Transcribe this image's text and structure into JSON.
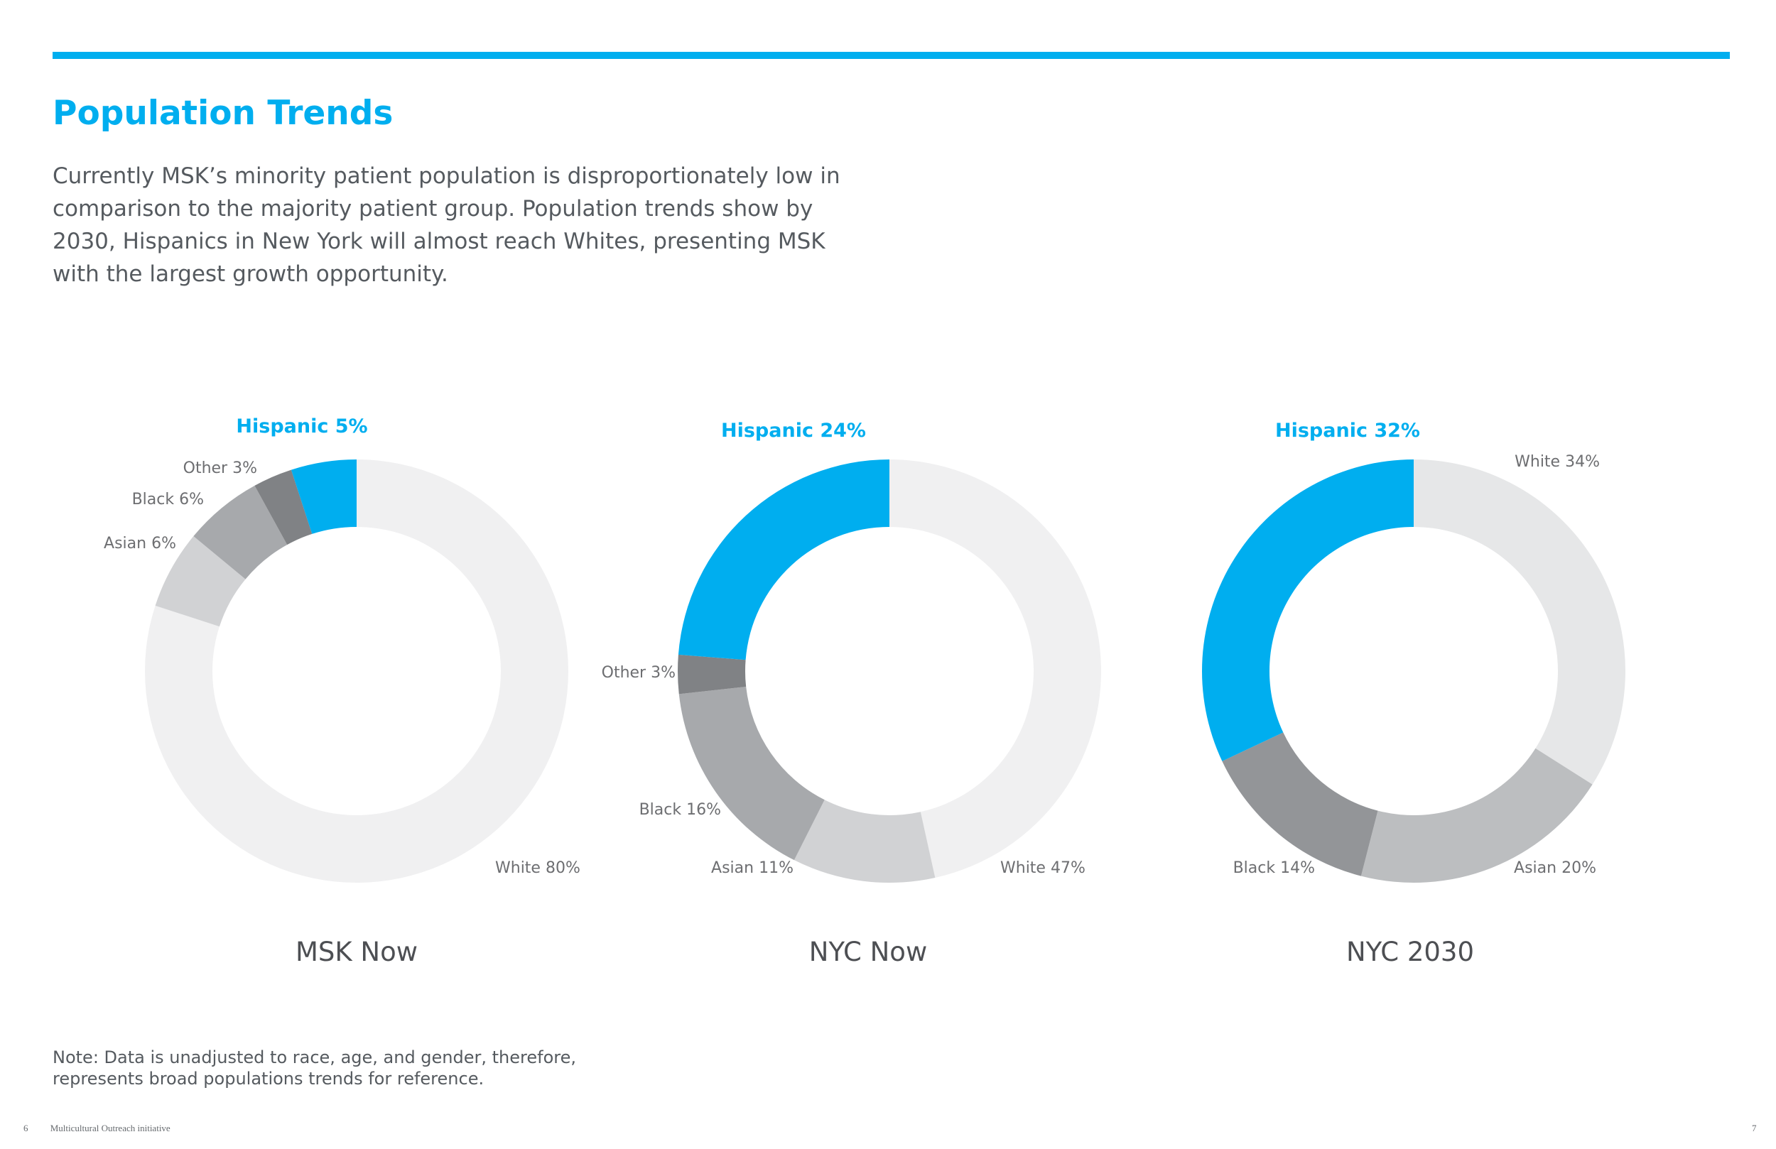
{
  "page": {
    "title": "Population Trends",
    "intro": "Currently MSK’s minority patient population is disproportionately low in comparison to the majority patient group. Population trends show by 2030, Hispanics in New York will almost reach Whites, presenting MSK with the largest growth opportunity.",
    "note": "Note: Data is unadjusted to race, age, and gender, therefore, represents broad populations trends for reference.",
    "footer": {
      "left_page_number": "6",
      "publication": "Multicultural Outreach initiative",
      "right_page_number": "7"
    },
    "accent_color": "#00aeef"
  },
  "chart_data": [
    {
      "type": "donut",
      "title": "MSK Now",
      "slices": [
        {
          "label": "White 80%",
          "category": "White",
          "value": 80,
          "color": "#f0f0f1"
        },
        {
          "label": "Asian 6%",
          "category": "Asian",
          "value": 6,
          "color": "#d1d2d4"
        },
        {
          "label": "Black 6%",
          "category": "Black",
          "value": 6,
          "color": "#a7a9ac"
        },
        {
          "label": "Other 3%",
          "category": "Other",
          "value": 3,
          "color": "#808285"
        },
        {
          "label": "Hispanic 5%",
          "category": "Hispanic",
          "value": 5,
          "color": "#00aeef",
          "highlight": true
        }
      ]
    },
    {
      "type": "donut",
      "title": "NYC Now",
      "slices": [
        {
          "label": "White 47%",
          "category": "White",
          "value": 47,
          "color": "#f0f0f1"
        },
        {
          "label": "Asian 11%",
          "category": "Asian",
          "value": 11,
          "color": "#d1d2d4"
        },
        {
          "label": "Black 16%",
          "category": "Black",
          "value": 16,
          "color": "#a7a9ac"
        },
        {
          "label": "Other 3%",
          "category": "Other",
          "value": 3,
          "color": "#808285"
        },
        {
          "label": "Hispanic 24%",
          "category": "Hispanic",
          "value": 24,
          "color": "#00aeef",
          "highlight": true
        }
      ]
    },
    {
      "type": "donut",
      "title": "NYC 2030",
      "slices": [
        {
          "label": "White 34%",
          "category": "White",
          "value": 34,
          "color": "#e6e7e8"
        },
        {
          "label": "Asian 20%",
          "category": "Asian",
          "value": 20,
          "color": "#bcbec0"
        },
        {
          "label": "Black 14%",
          "category": "Black",
          "value": 14,
          "color": "#939598"
        },
        {
          "label": "Hispanic 32%",
          "category": "Hispanic",
          "value": 32,
          "color": "#00aeef",
          "highlight": true
        }
      ]
    }
  ]
}
